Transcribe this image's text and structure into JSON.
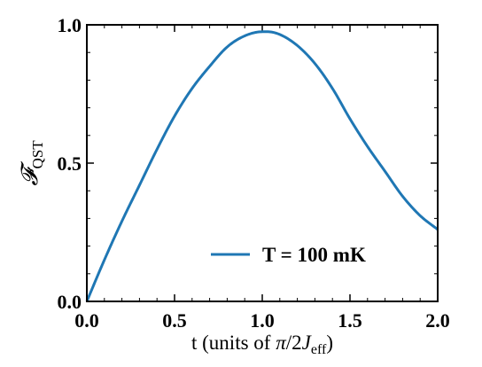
{
  "chart_data": {
    "type": "line",
    "xlabel": "t (units of π/2J_eff)",
    "xlabel_parts": {
      "prefix": "t (units of ",
      "pi": "π",
      "mid": "/2",
      "J": "J",
      "sub": "eff",
      "suffix": ")"
    },
    "ylabel": "F_QST",
    "ylabel_parts": {
      "main": "𝓕",
      "sub": "QST"
    },
    "xlim": [
      0.0,
      2.0
    ],
    "ylim": [
      0.0,
      1.0
    ],
    "xticks": [
      0.0,
      0.5,
      1.0,
      1.5,
      2.0
    ],
    "xtick_labels": [
      "0.0",
      "0.5",
      "1.0",
      "1.5",
      "2.0"
    ],
    "yticks": [
      0.0,
      0.5,
      1.0
    ],
    "ytick_labels": [
      "0.0",
      "0.5",
      "1.0"
    ],
    "grid": false,
    "legend_position": "lower-right",
    "series": [
      {
        "name": "T = 100 mK",
        "color": "#1f77b4",
        "x": [
          0.0,
          0.1,
          0.2,
          0.3,
          0.4,
          0.5,
          0.6,
          0.7,
          0.8,
          0.9,
          1.0,
          1.03,
          1.1,
          1.2,
          1.3,
          1.4,
          1.5,
          1.6,
          1.7,
          1.8,
          1.9,
          2.0
        ],
        "y": [
          0.0,
          0.15,
          0.29,
          0.42,
          0.55,
          0.67,
          0.77,
          0.85,
          0.92,
          0.96,
          0.975,
          0.975,
          0.965,
          0.925,
          0.86,
          0.77,
          0.66,
          0.56,
          0.47,
          0.38,
          0.31,
          0.26
        ]
      }
    ]
  }
}
